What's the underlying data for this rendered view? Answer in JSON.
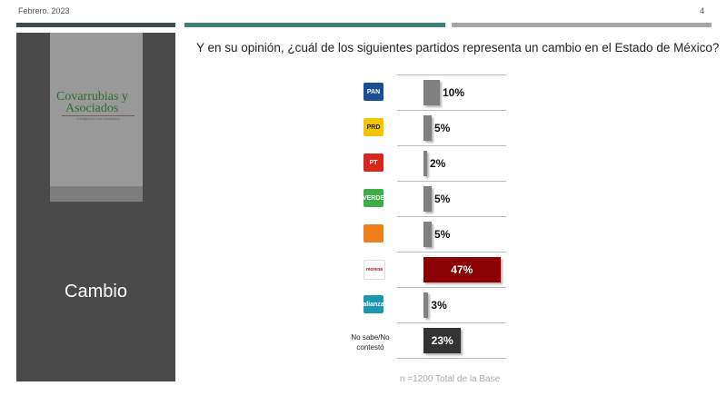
{
  "header": {
    "date": "Febrero. 2023",
    "page": "4"
  },
  "colors": {
    "bar1": "#3d4c53",
    "bar2": "#3f7f78",
    "bar3": "#a6a6a6"
  },
  "sidebar": {
    "logo_line1": "Covarrubias y",
    "logo_line2": "Asociados",
    "logo_tagline": "Inteligencia con resultados",
    "section": "Cambio"
  },
  "chart_data": {
    "type": "bar",
    "orientation": "horizontal",
    "title": "Y en su opinión, ¿cuál de los siguientes partidos representa un cambio en el Estado de México?",
    "categories": [
      "PAN",
      "PRD",
      "PT",
      "VERDE",
      "MC",
      "morena",
      "Nueva Alianza",
      "No sabe/No contestó"
    ],
    "values": [
      10,
      5,
      2,
      5,
      5,
      47,
      3,
      23
    ],
    "labels": [
      "10%",
      "5%",
      "2%",
      "5%",
      "5%",
      "47%",
      "3%",
      "23%"
    ],
    "bar_colors": [
      "#808080",
      "#808080",
      "#808080",
      "#808080",
      "#808080",
      "#8b0000",
      "#808080",
      "#333333"
    ],
    "icon_colors": [
      "#1b4f93",
      "#f2c500",
      "#d9261c",
      "#3fae49",
      "#f07f1a",
      "#ffffff",
      "#1c97b0",
      ""
    ],
    "icon_text": [
      "PAN",
      "PRD",
      "PT",
      "VERDE",
      "",
      "morena",
      "alianza",
      ""
    ],
    "xlim": [
      0,
      50
    ],
    "note": "n =1200 Total de la Base"
  }
}
